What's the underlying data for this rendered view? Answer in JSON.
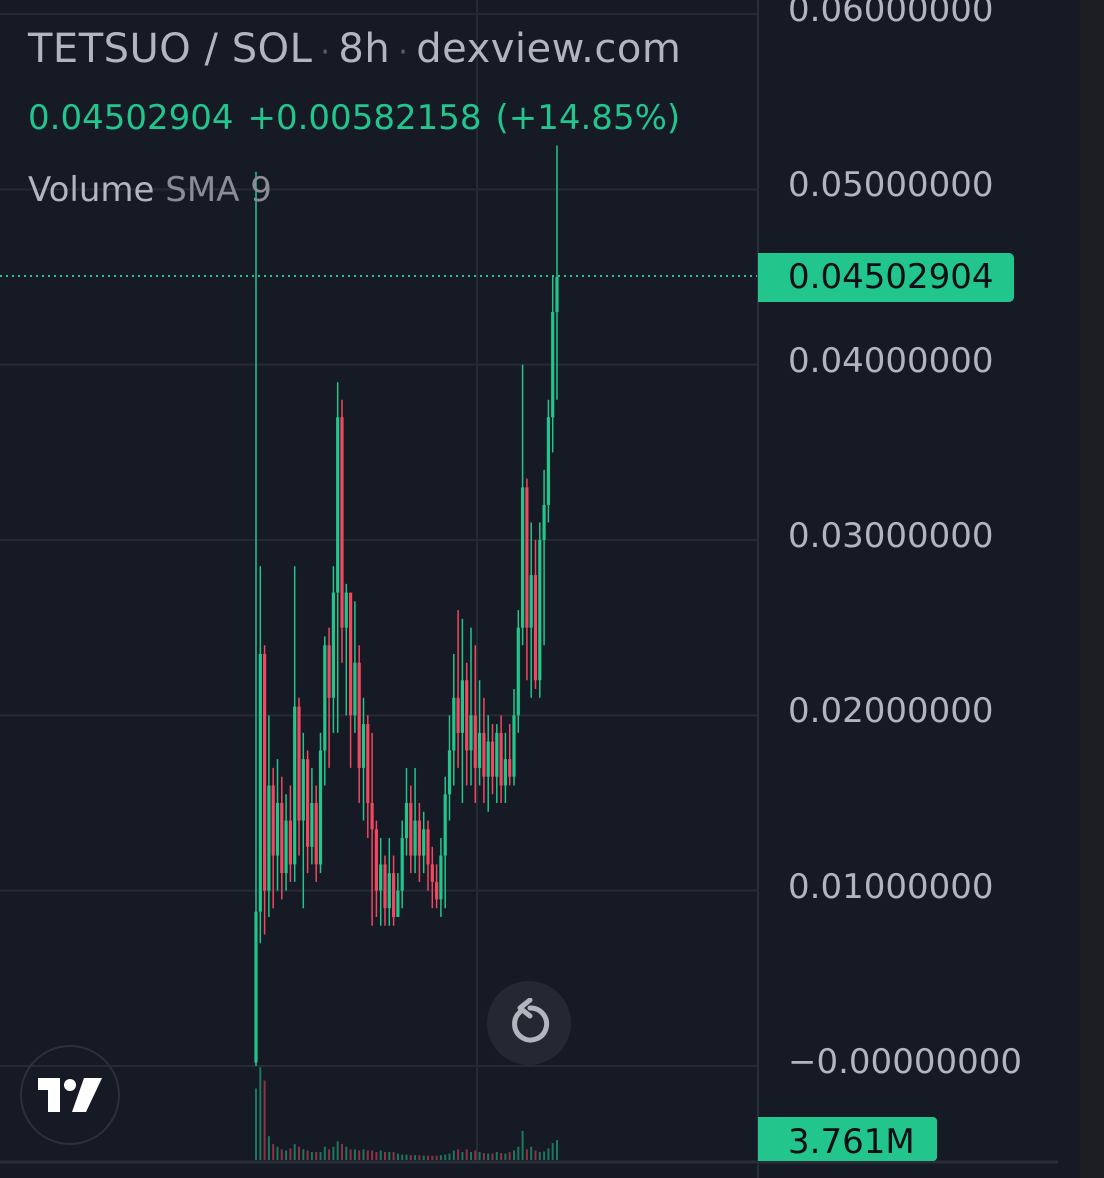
{
  "header": {
    "symbol": "TETSUO / SOL",
    "interval": "8h",
    "source": "dexview.com",
    "separator": "·"
  },
  "quote": {
    "last": "0.04502904",
    "change": "+0.00582158",
    "change_pct": "(+14.85%)"
  },
  "indicator": {
    "name": "Volume",
    "sub": "SMA 9"
  },
  "price_tag": "0.04502904",
  "volume_tag": "3.761M",
  "colors": {
    "up": "#22c58b",
    "down": "#f0485f",
    "background": "#161a25",
    "grid": "#262a35",
    "axis_text": "#b2b5be"
  },
  "icons": {
    "logo": "tradingview-logo-icon",
    "reset": "reset-chart-icon"
  },
  "chart_data": {
    "type": "candlestick",
    "yaxis_ticks": [
      "0.06000000",
      "0.05000000",
      "0.04000000",
      "0.03000000",
      "0.02000000",
      "0.01000000",
      "−0.00000000"
    ],
    "ylim": [
      0,
      0.06
    ],
    "grid": true,
    "last_price": 0.04502904,
    "ohlc": [
      [
        0.0002,
        0.051,
        0.0,
        0.0088
      ],
      [
        0.0088,
        0.0285,
        0.007,
        0.0235
      ],
      [
        0.0235,
        0.024,
        0.0075,
        0.01
      ],
      [
        0.01,
        0.02,
        0.0085,
        0.016
      ],
      [
        0.016,
        0.017,
        0.009,
        0.012
      ],
      [
        0.012,
        0.0175,
        0.01,
        0.015
      ],
      [
        0.015,
        0.0165,
        0.0095,
        0.011
      ],
      [
        0.011,
        0.0155,
        0.01,
        0.014
      ],
      [
        0.014,
        0.016,
        0.0105,
        0.0115
      ],
      [
        0.0115,
        0.0285,
        0.0105,
        0.0205
      ],
      [
        0.0205,
        0.021,
        0.012,
        0.014
      ],
      [
        0.014,
        0.019,
        0.009,
        0.0175
      ],
      [
        0.0175,
        0.018,
        0.011,
        0.0125
      ],
      [
        0.0125,
        0.017,
        0.0115,
        0.015
      ],
      [
        0.015,
        0.016,
        0.0105,
        0.0115
      ],
      [
        0.0115,
        0.019,
        0.011,
        0.018
      ],
      [
        0.018,
        0.0245,
        0.016,
        0.024
      ],
      [
        0.024,
        0.025,
        0.017,
        0.021
      ],
      [
        0.021,
        0.0285,
        0.019,
        0.027
      ],
      [
        0.027,
        0.039,
        0.019,
        0.037
      ],
      [
        0.037,
        0.038,
        0.023,
        0.025
      ],
      [
        0.025,
        0.0275,
        0.02,
        0.027
      ],
      [
        0.027,
        0.027,
        0.017,
        0.02
      ],
      [
        0.02,
        0.0265,
        0.019,
        0.023
      ],
      [
        0.023,
        0.024,
        0.015,
        0.017
      ],
      [
        0.017,
        0.021,
        0.014,
        0.0195
      ],
      [
        0.0195,
        0.02,
        0.013,
        0.015
      ],
      [
        0.015,
        0.019,
        0.008,
        0.0135
      ],
      [
        0.0135,
        0.014,
        0.0085,
        0.01
      ],
      [
        0.01,
        0.013,
        0.008,
        0.0115
      ],
      [
        0.0115,
        0.012,
        0.008,
        0.009
      ],
      [
        0.009,
        0.013,
        0.008,
        0.011
      ],
      [
        0.011,
        0.012,
        0.008,
        0.0085
      ],
      [
        0.0085,
        0.011,
        0.0085,
        0.01
      ],
      [
        0.01,
        0.014,
        0.009,
        0.013
      ],
      [
        0.013,
        0.017,
        0.012,
        0.015
      ],
      [
        0.015,
        0.016,
        0.011,
        0.012
      ],
      [
        0.012,
        0.017,
        0.011,
        0.014
      ],
      [
        0.014,
        0.015,
        0.0105,
        0.012
      ],
      [
        0.012,
        0.0145,
        0.011,
        0.0135
      ],
      [
        0.0135,
        0.014,
        0.01,
        0.0115
      ],
      [
        0.0115,
        0.0125,
        0.009,
        0.0105
      ],
      [
        0.0105,
        0.0115,
        0.009,
        0.0095
      ],
      [
        0.0095,
        0.013,
        0.0085,
        0.012
      ],
      [
        0.012,
        0.0165,
        0.009,
        0.0155
      ],
      [
        0.0155,
        0.02,
        0.014,
        0.018
      ],
      [
        0.018,
        0.0235,
        0.016,
        0.021
      ],
      [
        0.021,
        0.026,
        0.017,
        0.019
      ],
      [
        0.019,
        0.0255,
        0.015,
        0.022
      ],
      [
        0.022,
        0.023,
        0.016,
        0.018
      ],
      [
        0.018,
        0.025,
        0.016,
        0.02
      ],
      [
        0.02,
        0.024,
        0.015,
        0.017
      ],
      [
        0.017,
        0.022,
        0.016,
        0.019
      ],
      [
        0.019,
        0.021,
        0.015,
        0.0165
      ],
      [
        0.0165,
        0.02,
        0.0145,
        0.0185
      ],
      [
        0.0185,
        0.0195,
        0.0155,
        0.0165
      ],
      [
        0.0165,
        0.0195,
        0.015,
        0.019
      ],
      [
        0.019,
        0.02,
        0.015,
        0.016
      ],
      [
        0.016,
        0.019,
        0.015,
        0.0175
      ],
      [
        0.0175,
        0.0195,
        0.016,
        0.0165
      ],
      [
        0.0165,
        0.0215,
        0.016,
        0.02
      ],
      [
        0.02,
        0.026,
        0.019,
        0.025
      ],
      [
        0.025,
        0.04,
        0.024,
        0.033
      ],
      [
        0.033,
        0.0335,
        0.022,
        0.025
      ],
      [
        0.025,
        0.031,
        0.021,
        0.028
      ],
      [
        0.028,
        0.03,
        0.0215,
        0.022
      ],
      [
        0.022,
        0.031,
        0.021,
        0.03
      ],
      [
        0.03,
        0.034,
        0.024,
        0.032
      ],
      [
        0.032,
        0.038,
        0.031,
        0.037
      ],
      [
        0.037,
        0.045,
        0.035,
        0.043
      ],
      [
        0.043,
        0.0525,
        0.038,
        0.045
      ]
    ],
    "volume_millions": [
      13.5,
      17.5,
      15,
      4.5,
      3,
      2.5,
      2,
      1.8,
      2.2,
      3,
      2.5,
      2,
      1.8,
      1.5,
      1.5,
      1.5,
      2.5,
      2,
      2.5,
      3.5,
      3,
      2.5,
      2,
      2,
      1.8,
      2,
      1.8,
      1.8,
      1.5,
      1.8,
      1.5,
      1.5,
      1.5,
      1.2,
      1,
      1,
      0.9,
      0.9,
      0.9,
      0.8,
      0.8,
      0.8,
      0.8,
      0.9,
      1,
      1.2,
      1.8,
      2,
      1.5,
      2,
      1.5,
      1.8,
      1.5,
      1.3,
      1.2,
      1.2,
      1.5,
      1.3,
      1.2,
      1.5,
      1.8,
      2.5,
      5.5,
      2,
      2.5,
      1.8,
      1.5,
      1.6,
      2.2,
      3.2,
      3.761
    ]
  }
}
